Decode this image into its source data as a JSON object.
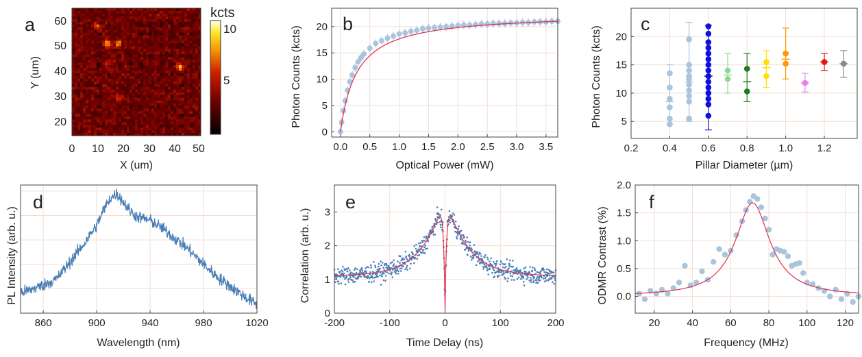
{
  "figure": {
    "panels": {
      "a": {
        "label": "a",
        "xlabel": "X (um)",
        "ylabel": "Y (um)",
        "xticks": [
          "0",
          "10",
          "20",
          "30",
          "40",
          "50"
        ],
        "yticks": [
          "20",
          "30",
          "40",
          "50",
          "60"
        ],
        "colorbar_title": "kcts",
        "colorbar_ticks": [
          "10",
          "5"
        ]
      },
      "b": {
        "label": "b",
        "xlabel": "Optical Power (mW)",
        "ylabel": "Photon Counts (kcts)",
        "xticks": [
          "0.0",
          "0.5",
          "1.0",
          "1.5",
          "2.0",
          "2.5",
          "3.0",
          "3.5"
        ],
        "yticks": [
          "0",
          "5",
          "10",
          "15",
          "20"
        ]
      },
      "c": {
        "label": "c",
        "xlabel": "Pillar Diameter (µm)",
        "ylabel": "Photon Counts (kcts)",
        "xticks": [
          "0.2",
          "0.4",
          "0.6",
          "0.8",
          "1.0",
          "1.2"
        ],
        "yticks": [
          "5",
          "10",
          "15",
          "20"
        ]
      },
      "d": {
        "label": "d",
        "xlabel": "Wavelength (nm)",
        "ylabel": "PL Intensity (arb. u.)",
        "xticks": [
          "860",
          "900",
          "940",
          "980",
          "1020"
        ]
      },
      "e": {
        "label": "e",
        "xlabel": "Time Delay (ns)",
        "ylabel": "Correlation (arb. u.)",
        "xticks": [
          "-200",
          "-100",
          "0",
          "100",
          "200"
        ],
        "yticks": [
          "0",
          "1",
          "2",
          "3"
        ]
      },
      "f": {
        "label": "f",
        "xlabel": "Frequency (MHz)",
        "ylabel": "ODMR Contrast (%)",
        "xticks": [
          "20",
          "40",
          "60",
          "80",
          "100",
          "120"
        ],
        "yticks": [
          "0.0",
          "0.5",
          "1.0",
          "1.5",
          "2.0"
        ]
      }
    }
  },
  "colors": {
    "data_light": "#a9c4dd",
    "line_blue": "#4a7fb5",
    "fit_red": "#e03050",
    "axis": "#333333",
    "grid": "#f2ddd2"
  },
  "chart_data": [
    {
      "panel": "a",
      "type": "heatmap",
      "xlabel": "X (um)",
      "ylabel": "Y (um)",
      "xlim": [
        0,
        50
      ],
      "ylim": [
        15,
        65
      ],
      "colorbar": {
        "label": "kcts",
        "range": [
          0,
          10
        ],
        "ticks": [
          5,
          10
        ]
      },
      "bright_spots": [
        {
          "x": 10,
          "y": 58,
          "kcts": 8
        },
        {
          "x": 14,
          "y": 51,
          "kcts": 10
        },
        {
          "x": 18,
          "y": 51,
          "kcts": 9
        },
        {
          "x": 42,
          "y": 42,
          "kcts": 10
        },
        {
          "x": 14,
          "y": 43,
          "kcts": 6
        },
        {
          "x": 18,
          "y": 30,
          "kcts": 6
        }
      ],
      "background_kcts": 3
    },
    {
      "panel": "b",
      "type": "scatter",
      "xlabel": "Optical Power (mW)",
      "ylabel": "Photon Counts (kcts)",
      "xlim": [
        -0.15,
        3.7
      ],
      "ylim": [
        -1,
        23.5
      ],
      "grid": true,
      "series": [
        {
          "x": [
            0.0,
            0.02,
            0.05,
            0.08,
            0.12,
            0.16,
            0.2,
            0.25,
            0.3,
            0.35,
            0.4,
            0.5,
            0.6,
            0.7,
            0.8,
            0.9,
            1.0,
            1.1,
            1.2,
            1.3,
            1.4,
            1.5,
            1.6,
            1.7,
            1.8,
            1.9,
            2.0,
            2.1,
            2.2,
            2.3,
            2.4,
            2.5,
            2.6,
            2.7,
            2.8,
            2.9,
            3.0,
            3.1,
            3.2,
            3.3,
            3.4,
            3.5,
            3.6,
            3.7
          ],
          "y": [
            0.0,
            1.8,
            4.0,
            5.9,
            7.9,
            9.5,
            10.8,
            12.2,
            13.3,
            14.1,
            14.8,
            15.9,
            16.8,
            17.3,
            17.8,
            18.2,
            18.6,
            18.8,
            19.1,
            19.3,
            19.6,
            19.7,
            19.8,
            19.9,
            20.0,
            20.1,
            20.2,
            20.3,
            20.3,
            20.4,
            20.5,
            20.5,
            20.6,
            20.6,
            20.6,
            20.7,
            20.7,
            20.8,
            20.8,
            20.9,
            20.9,
            20.9,
            21.0,
            21.0
          ]
        }
      ],
      "fit": {
        "model": "saturation",
        "Isat_kcts": 22.6,
        "Psat_mW": 0.28
      }
    },
    {
      "panel": "c",
      "type": "scatter",
      "xlabel": "Pillar Diameter (µm)",
      "ylabel": "Photon Counts (kcts)",
      "xlim": [
        0.2,
        1.37
      ],
      "ylim": [
        2,
        25
      ],
      "grid": true,
      "groups": [
        {
          "x": 0.4,
          "color": "#a9c4dd",
          "points": [
            13.5,
            11.0,
            9.0,
            7.5,
            5.5,
            4.5
          ],
          "mean": 8.5,
          "err": [
            4.5,
            15.0
          ]
        },
        {
          "x": 0.5,
          "color": "#a9c4dd",
          "points": [
            19.5,
            15.0,
            14.0,
            13.0,
            12.5,
            11.5,
            10.5,
            9.5,
            8.5,
            5.5
          ],
          "mean": 12.0,
          "err": [
            5.0,
            22.5
          ]
        },
        {
          "x": 0.6,
          "color": "#1111dd",
          "points": [
            21.8,
            20.5,
            19.0,
            18.0,
            17.0,
            16.0,
            15.0,
            14.0,
            13.0,
            12.0,
            11.0,
            10.0,
            9.0,
            8.0,
            6.0
          ],
          "mean": 13.0,
          "err": [
            3.5,
            22.0
          ]
        },
        {
          "x": 0.7,
          "color": "#8ed88e",
          "points": [
            14.0,
            12.5
          ],
          "mean": 13.2,
          "err": [
            10.0,
            17.0
          ]
        },
        {
          "x": 0.8,
          "color": "#1c7d1c",
          "points": [
            14.3,
            10.3
          ],
          "mean": 12.0,
          "err": [
            8.5,
            17.0
          ]
        },
        {
          "x": 0.9,
          "color": "#ffe000",
          "points": [
            15.5,
            13.0
          ],
          "mean": 14.5,
          "err": [
            11.0,
            17.5
          ]
        },
        {
          "x": 1.0,
          "color": "#ff9800",
          "points": [
            17.0,
            15.2
          ],
          "mean": 16.0,
          "err": [
            12.5,
            21.5
          ]
        },
        {
          "x": 1.1,
          "color": "#e583e3",
          "points": [
            11.8
          ],
          "mean": 11.8,
          "err": [
            10.2,
            13.5
          ]
        },
        {
          "x": 1.2,
          "color": "#e51515",
          "points": [
            15.5
          ],
          "mean": 15.5,
          "err": [
            14.0,
            17.0
          ]
        },
        {
          "x": 1.3,
          "color": "#8a8a8a",
          "points": [
            15.2
          ],
          "mean": 15.2,
          "err": [
            12.8,
            17.5
          ]
        }
      ]
    },
    {
      "panel": "d",
      "type": "line",
      "xlabel": "Wavelength (nm)",
      "ylabel": "PL Intensity (arb. u.)",
      "xlim": [
        843,
        1020
      ],
      "grid": true,
      "series": [
        {
          "x": [
            843,
            850,
            860,
            870,
            880,
            890,
            900,
            905,
            910,
            915,
            920,
            925,
            930,
            940,
            950,
            960,
            970,
            980,
            990,
            1000,
            1010,
            1020
          ],
          "y": [
            0.17,
            0.19,
            0.23,
            0.28,
            0.42,
            0.56,
            0.72,
            0.84,
            0.94,
            0.98,
            0.91,
            0.84,
            0.79,
            0.76,
            0.69,
            0.6,
            0.51,
            0.4,
            0.3,
            0.22,
            0.14,
            0.07
          ]
        }
      ]
    },
    {
      "panel": "e",
      "type": "scatter",
      "xlabel": "Time Delay (ns)",
      "ylabel": "Correlation (arb. u.)",
      "xlim": [
        -200,
        200
      ],
      "ylim": [
        0,
        3.8
      ],
      "grid": true,
      "fit": {
        "baseline": 1.1,
        "peak": 3.5,
        "tau_bunch_ns": 40,
        "tau_antibunch_ns": 3,
        "g2_zero": 0.05
      }
    },
    {
      "panel": "f",
      "type": "scatter",
      "xlabel": "Frequency (MHz)",
      "ylabel": "ODMR Contrast (%)",
      "xlim": [
        10,
        127
      ],
      "ylim": [
        -0.3,
        2.0
      ],
      "grid": true,
      "series": [
        {
          "x": [
            12,
            15,
            18,
            21,
            24,
            27,
            30,
            33,
            36,
            39,
            42,
            45,
            48,
            51,
            54,
            57,
            60,
            63,
            66,
            68,
            70,
            72,
            74,
            76,
            78,
            80,
            82,
            84,
            86,
            88,
            90,
            92,
            94,
            96,
            98,
            100,
            103,
            106,
            109,
            112,
            115,
            118,
            121,
            124,
            127
          ],
          "y": [
            0.05,
            -0.05,
            0.1,
            0.05,
            0.12,
            0.05,
            0.15,
            0.25,
            0.55,
            0.2,
            0.25,
            0.45,
            0.3,
            0.62,
            0.85,
            0.75,
            0.82,
            1.1,
            1.35,
            1.55,
            1.7,
            1.8,
            1.75,
            1.6,
            1.4,
            1.2,
            0.75,
            0.85,
            0.82,
            0.8,
            0.72,
            0.55,
            0.58,
            0.6,
            0.42,
            0.25,
            0.22,
            0.15,
            0.1,
            0.0,
            0.12,
            -0.05,
            0.05,
            -0.1,
            0.0
          ]
        }
      ],
      "fit": {
        "model": "lorentzian",
        "center_MHz": 71.5,
        "fwhm_MHz": 22,
        "amplitude": 1.68
      }
    }
  ]
}
